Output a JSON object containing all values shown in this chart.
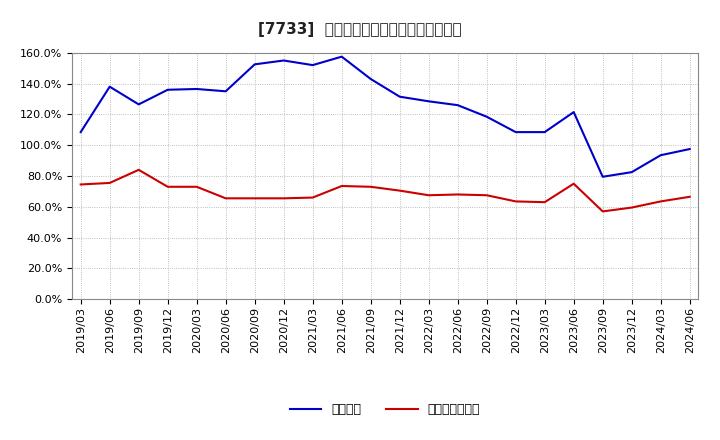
{
  "title": "[7733]  固定比率、固定長期適合率の推移",
  "line1_label": "固定比率",
  "line2_label": "固定長期適合率",
  "line1_color": "#0000cc",
  "line2_color": "#cc0000",
  "x_labels": [
    "2019/03",
    "2019/06",
    "2019/09",
    "2019/12",
    "2020/03",
    "2020/06",
    "2020/09",
    "2020/12",
    "2021/03",
    "2021/06",
    "2021/09",
    "2021/12",
    "2022/03",
    "2022/06",
    "2022/09",
    "2022/12",
    "2023/03",
    "2023/06",
    "2023/09",
    "2023/12",
    "2024/03",
    "2024/06"
  ],
  "line1_values": [
    108.5,
    138.0,
    126.5,
    136.0,
    136.5,
    135.0,
    152.5,
    155.0,
    152.0,
    157.5,
    143.0,
    131.5,
    128.5,
    126.0,
    118.5,
    108.5,
    108.5,
    121.5,
    79.5,
    82.5,
    93.5,
    97.5
  ],
  "line2_values": [
    74.5,
    75.5,
    84.0,
    73.0,
    73.0,
    65.5,
    65.5,
    65.5,
    66.0,
    73.5,
    73.0,
    70.5,
    67.5,
    68.0,
    67.5,
    63.5,
    63.0,
    75.0,
    57.0,
    59.5,
    63.5,
    66.5
  ],
  "ylim": [
    0,
    160
  ],
  "yticks": [
    0,
    20,
    40,
    60,
    80,
    100,
    120,
    140,
    160
  ],
  "background_color": "#ffffff",
  "grid_color": "#aaaaaa",
  "title_fontsize": 11,
  "legend_fontsize": 9,
  "tick_fontsize": 8
}
